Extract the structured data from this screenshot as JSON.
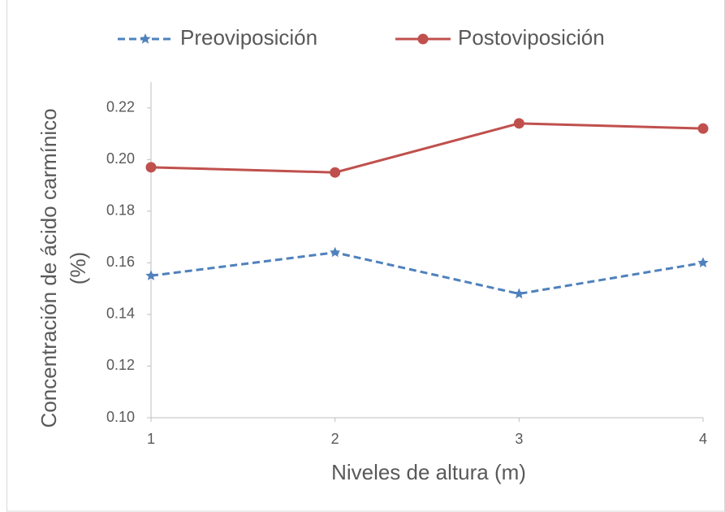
{
  "chart_data": {
    "type": "line",
    "xlabel": "Niveles de altura (m)",
    "ylabel": [
      "Concentración de ácido carmínico",
      "(%)"
    ],
    "categories": [
      "1",
      "2",
      "3",
      "4"
    ],
    "series": [
      {
        "name": "Preoviposición",
        "color": "#4f81bd",
        "dash": true,
        "marker": "star",
        "values": [
          0.155,
          0.164,
          0.148,
          0.16
        ]
      },
      {
        "name": "Postoviposición",
        "color": "#c0504d",
        "dash": false,
        "marker": "circle",
        "values": [
          0.197,
          0.195,
          0.214,
          0.212
        ]
      }
    ],
    "ylim": [
      0.1,
      0.23
    ],
    "yticks": [
      {
        "value": 0.1,
        "label": "0.10"
      },
      0.12,
      0.14,
      0.16,
      0.18,
      {
        "value": 0.2,
        "label": "0.20"
      },
      0.22
    ],
    "legend": "top",
    "grid": false
  }
}
